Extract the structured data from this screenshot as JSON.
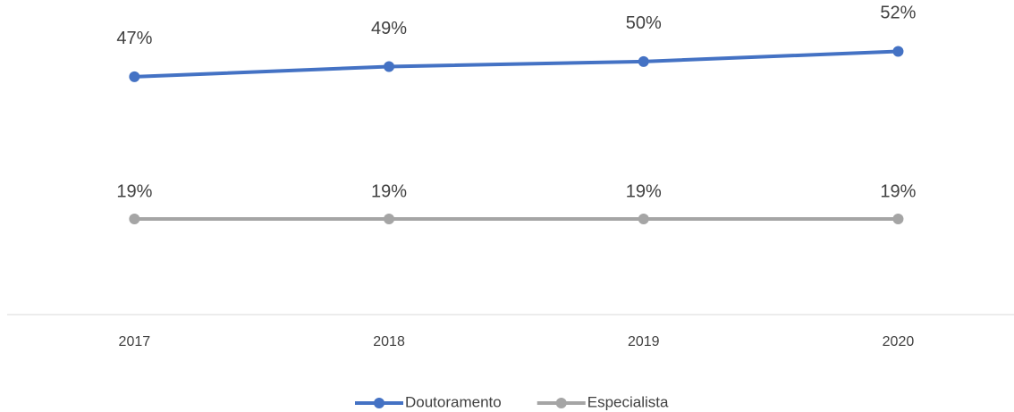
{
  "chart_data": {
    "type": "line",
    "categories": [
      "2017",
      "2018",
      "2019",
      "2020"
    ],
    "series": [
      {
        "name": "Doutoramento",
        "color": "#4472c4",
        "values": [
          47,
          49,
          50,
          52
        ],
        "value_labels": [
          "47%",
          "49%",
          "50%",
          "52%"
        ]
      },
      {
        "name": "Especialista",
        "color": "#a5a5a5",
        "values": [
          19,
          19,
          19,
          19
        ],
        "value_labels": [
          "19%",
          "19%",
          "19%",
          "19%"
        ]
      }
    ],
    "ylim": [
      0,
      60
    ],
    "legend": "bottom"
  }
}
